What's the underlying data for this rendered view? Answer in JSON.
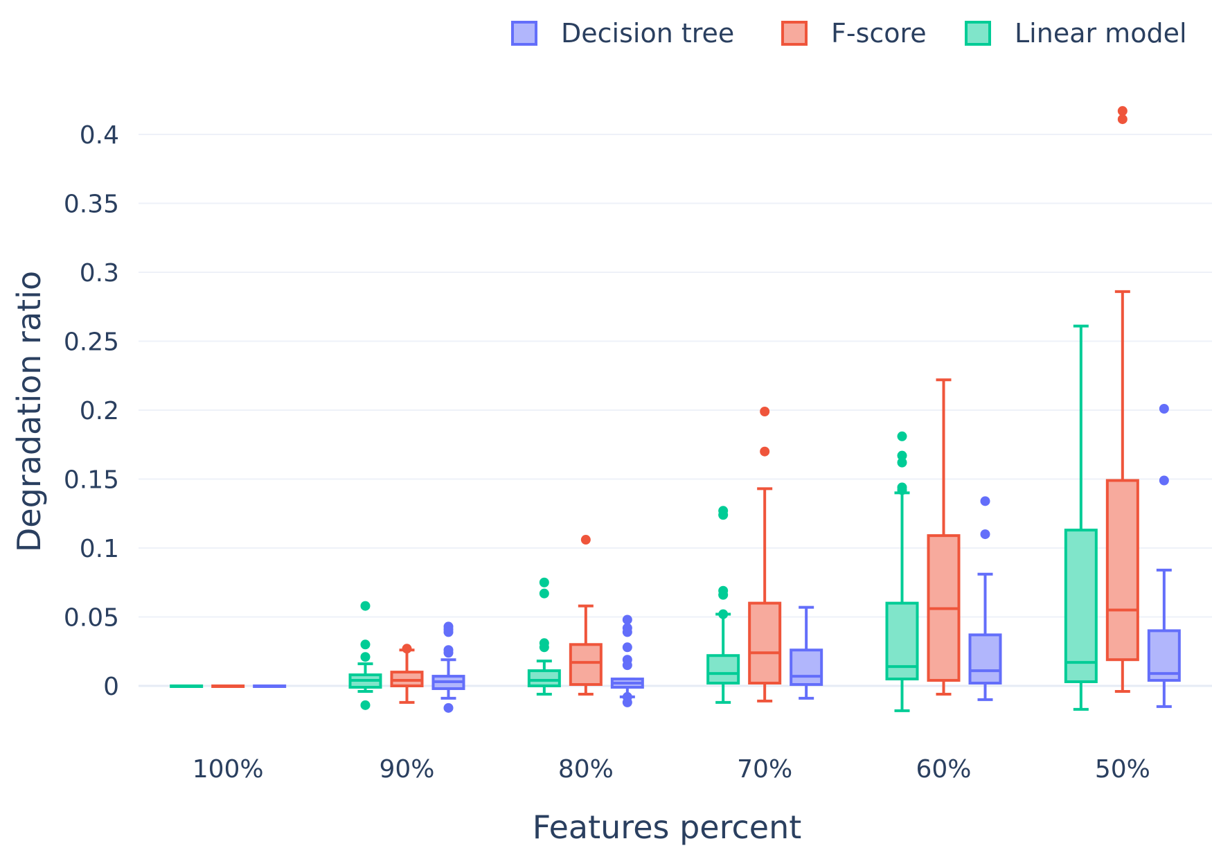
{
  "chart_data": {
    "type": "box",
    "xlabel": "Features percent",
    "ylabel": "Degradation ratio",
    "categories": [
      "100%",
      "90%",
      "80%",
      "70%",
      "60%",
      "50%"
    ],
    "ylim": [
      -0.035,
      0.43
    ],
    "yticks": [
      {
        "value": 0,
        "label": "0"
      },
      {
        "value": 0.05,
        "label": "0.05"
      },
      {
        "value": 0.1,
        "label": "0.1"
      },
      {
        "value": 0.15,
        "label": "0.15"
      },
      {
        "value": 0.2,
        "label": "0.2"
      },
      {
        "value": 0.25,
        "label": "0.25"
      },
      {
        "value": 0.3,
        "label": "0.3"
      },
      {
        "value": 0.35,
        "label": "0.35"
      },
      {
        "value": 0.4,
        "label": "0.4"
      }
    ],
    "grid": true,
    "legend_position": "top-right",
    "legend_order": [
      "Decision tree",
      "F-score",
      "Linear model"
    ],
    "series": [
      {
        "name": "Linear model",
        "color": "#00cc96",
        "fill": "#80e5ca",
        "boxes": [
          {
            "lower": 0,
            "q1": 0,
            "median": 0,
            "q3": 0,
            "upper": 0,
            "outliers": []
          },
          {
            "lower": -0.004,
            "q1": -0.001,
            "median": 0.004,
            "q3": 0.008,
            "upper": 0.016,
            "outliers": [
              0.058,
              0.03,
              0.021,
              -0.014
            ]
          },
          {
            "lower": -0.006,
            "q1": 0,
            "median": 0.004,
            "q3": 0.011,
            "upper": 0.018,
            "outliers": [
              0.075,
              0.067,
              0.031,
              0.028
            ]
          },
          {
            "lower": -0.012,
            "q1": 0.002,
            "median": 0.009,
            "q3": 0.022,
            "upper": 0.052,
            "outliers": [
              0.127,
              0.124,
              0.069,
              0.066,
              0.052
            ]
          },
          {
            "lower": -0.018,
            "q1": 0.005,
            "median": 0.014,
            "q3": 0.06,
            "upper": 0.14,
            "outliers": [
              0.181,
              0.167,
              0.162,
              0.144,
              0.142
            ]
          },
          {
            "lower": -0.017,
            "q1": 0.003,
            "median": 0.017,
            "q3": 0.113,
            "upper": 0.261,
            "outliers": []
          }
        ]
      },
      {
        "name": "F-score",
        "color": "#ef553b",
        "fill": "#f7aa9d",
        "boxes": [
          {
            "lower": 0,
            "q1": 0,
            "median": 0,
            "q3": 0,
            "upper": 0,
            "outliers": []
          },
          {
            "lower": -0.012,
            "q1": 0,
            "median": 0.004,
            "q3": 0.01,
            "upper": 0.026,
            "outliers": [
              0.027
            ]
          },
          {
            "lower": -0.006,
            "q1": 0.001,
            "median": 0.017,
            "q3": 0.03,
            "upper": 0.058,
            "outliers": [
              0.106
            ]
          },
          {
            "lower": -0.011,
            "q1": 0.002,
            "median": 0.024,
            "q3": 0.06,
            "upper": 0.143,
            "outliers": [
              0.199,
              0.17
            ]
          },
          {
            "lower": -0.006,
            "q1": 0.004,
            "median": 0.056,
            "q3": 0.109,
            "upper": 0.222,
            "outliers": []
          },
          {
            "lower": -0.004,
            "q1": 0.019,
            "median": 0.055,
            "q3": 0.149,
            "upper": 0.286,
            "outliers": [
              0.417,
              0.411
            ]
          }
        ]
      },
      {
        "name": "Decision tree",
        "color": "#636efa",
        "fill": "#b1b6fc",
        "boxes": [
          {
            "lower": 0,
            "q1": 0,
            "median": 0,
            "q3": 0,
            "upper": 0,
            "outliers": []
          },
          {
            "lower": -0.009,
            "q1": -0.002,
            "median": 0.003,
            "q3": 0.007,
            "upper": 0.019,
            "outliers": [
              0.043,
              0.041,
              0.039,
              0.026,
              0.024,
              -0.016
            ]
          },
          {
            "lower": -0.008,
            "q1": -0.001,
            "median": 0.002,
            "q3": 0.005,
            "upper": 0.005,
            "outliers": [
              0.048,
              0.042,
              0.039,
              0.028,
              0.019,
              0.015,
              -0.008,
              -0.012
            ]
          },
          {
            "lower": -0.009,
            "q1": 0.001,
            "median": 0.007,
            "q3": 0.026,
            "upper": 0.057,
            "outliers": []
          },
          {
            "lower": -0.01,
            "q1": 0.002,
            "median": 0.011,
            "q3": 0.037,
            "upper": 0.081,
            "outliers": [
              0.134,
              0.11
            ]
          },
          {
            "lower": -0.015,
            "q1": 0.004,
            "median": 0.009,
            "q3": 0.04,
            "upper": 0.084,
            "outliers": [
              0.201,
              0.149
            ]
          }
        ]
      }
    ]
  }
}
